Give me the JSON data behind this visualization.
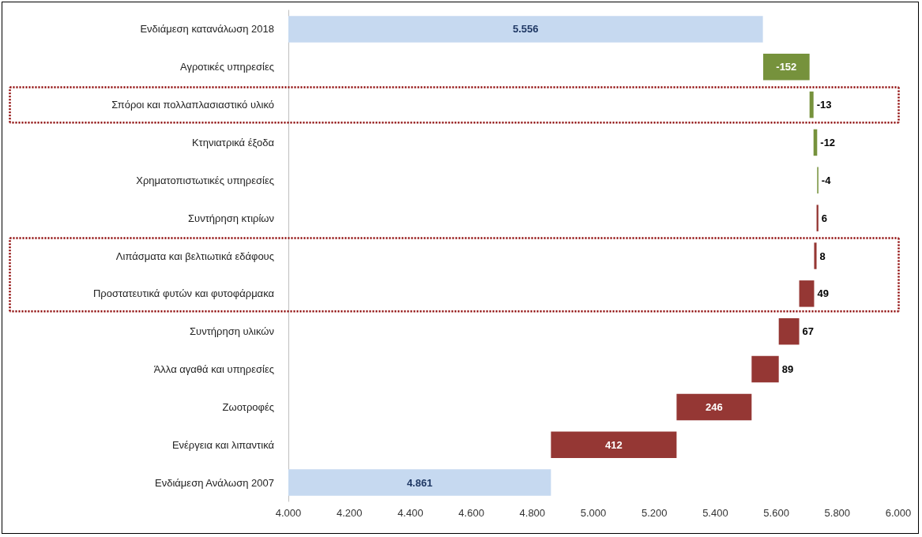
{
  "chart_data": {
    "type": "bar",
    "orientation": "horizontal",
    "categories": [
      "Ενδιάμεση κατανάλωση 2018",
      "Αγροτικές υπηρεσίες",
      "Σπόροι και πολλαπλασιαστικό υλικό",
      "Κτηνιατρικά έξοδα",
      "Χρηματοπιστωτικές υπηρεσίες",
      "Συντήρηση κτιρίων",
      "Λιπάσματα και βελτιωτικά εδάφους",
      "Προστατευτικά φυτών και φυτοφάρμακα",
      "Συντήρηση υλικών",
      "Άλλα αγαθά και υπηρεσίες",
      "Ζωοτροφές",
      "Ενέργεια και λιπαντικά",
      "Ενδιάμεση Ανάλωση 2007"
    ],
    "values": [
      5556,
      -152,
      -13,
      -12,
      -4,
      6,
      8,
      49,
      67,
      89,
      246,
      412,
      4861
    ],
    "base": [
      0,
      5709,
      5722,
      5734,
      5738,
      5732,
      5724,
      5675,
      5608,
      5519,
      5273,
      4861,
      0
    ],
    "colors": [
      "#c6d9f0",
      "#76923c",
      "#76923c",
      "#76923c",
      "#76923c",
      "#953734",
      "#953734",
      "#953734",
      "#953734",
      "#953734",
      "#953734",
      "#953734",
      "#c6d9f0"
    ],
    "value_labels": [
      "5.556",
      "-152",
      "-13",
      "-12",
      "-4",
      "6",
      "8",
      "49",
      "67",
      "89",
      "246",
      "412",
      "4.861"
    ],
    "xlim": [
      4000,
      6000
    ],
    "xticks": [
      {
        "value": 4000,
        "label": "4.000"
      },
      {
        "value": 4200,
        "label": "4.200"
      },
      {
        "value": 4400,
        "label": "4.400"
      },
      {
        "value": 4600,
        "label": "4.600"
      },
      {
        "value": 4800,
        "label": "4.800"
      },
      {
        "value": 5000,
        "label": "5.000"
      },
      {
        "value": 5200,
        "label": "5.200"
      },
      {
        "value": 5400,
        "label": "5.400"
      },
      {
        "value": 5600,
        "label": "5.600"
      },
      {
        "value": 5800,
        "label": "5.800"
      },
      {
        "value": 6000,
        "label": "6.000"
      }
    ],
    "grid": false
  }
}
